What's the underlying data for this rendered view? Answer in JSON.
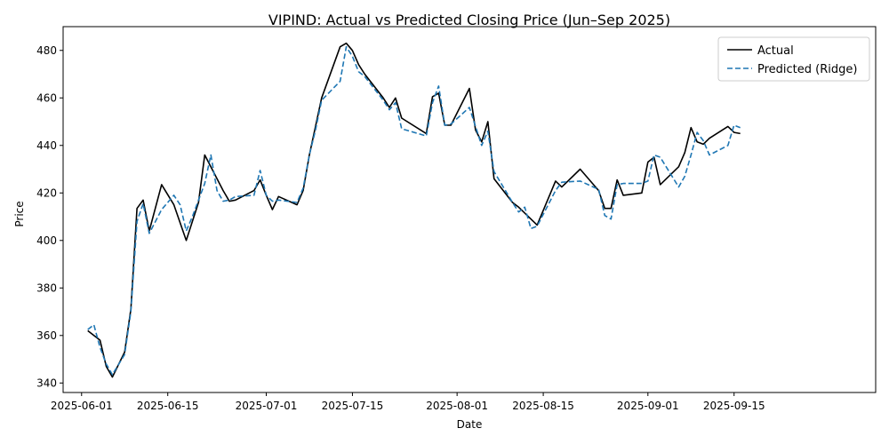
{
  "chart_data": {
    "type": "line",
    "title": "VIPIND: Actual vs Predicted Closing Price (Jun–Sep 2025)",
    "xlabel": "Date",
    "ylabel": "Price",
    "x_domain_days": [
      -3,
      129
    ],
    "ylim": [
      336,
      490
    ],
    "x_ticks": [
      {
        "day": 0,
        "label": "2025-06-01"
      },
      {
        "day": 14,
        "label": "2025-06-15"
      },
      {
        "day": 30,
        "label": "2025-07-01"
      },
      {
        "day": 44,
        "label": "2025-07-15"
      },
      {
        "day": 61,
        "label": "2025-08-01"
      },
      {
        "day": 75,
        "label": "2025-08-15"
      },
      {
        "day": 92,
        "label": "2025-09-01"
      },
      {
        "day": 106,
        "label": "2025-09-15"
      }
    ],
    "y_ticks": [
      340,
      360,
      380,
      400,
      420,
      440,
      460,
      480
    ],
    "legend_position": "upper-right",
    "colors": {
      "actual": "#000000",
      "predicted": "#1f77b4"
    },
    "series": [
      {
        "name": "Actual",
        "style": "solid",
        "x": [
          1,
          3,
          4,
          5,
          7,
          8,
          9,
          10,
          11,
          13,
          15,
          17,
          18,
          19,
          20,
          23,
          24,
          25,
          28,
          29,
          30,
          31,
          32,
          35,
          36,
          37,
          38,
          39,
          42,
          43,
          44,
          45,
          46,
          49,
          50,
          51,
          52,
          56,
          57,
          58,
          59,
          60,
          63,
          64,
          65,
          66,
          67,
          70,
          71,
          74,
          77,
          78,
          81,
          84,
          85,
          86,
          87,
          88,
          91,
          92,
          93,
          94,
          97,
          98,
          99,
          100,
          101,
          102,
          105,
          106,
          107
        ],
        "values": [
          362,
          358,
          347,
          342.5,
          353,
          371,
          413.5,
          417,
          404,
          423.5,
          415,
          400,
          408,
          416,
          436,
          421,
          416.5,
          417,
          421,
          425.5,
          419,
          413,
          418.5,
          415,
          421,
          436,
          448,
          460,
          481.5,
          483,
          480,
          474,
          470,
          460,
          456,
          460,
          451.5,
          445,
          460.5,
          462,
          448.5,
          448.5,
          464,
          446.5,
          441.5,
          450,
          426,
          416,
          414,
          406.5,
          425,
          422.5,
          430,
          421,
          413.5,
          413.5,
          425.5,
          419,
          420,
          433,
          435,
          423.5,
          431,
          437,
          447.5,
          441.5,
          440.5,
          443,
          448,
          445.5,
          445
        ]
      },
      {
        "name": "Predicted (Ridge)",
        "style": "dashed",
        "x": [
          1,
          2,
          3,
          4,
          5,
          7,
          8,
          9,
          10,
          11,
          13,
          15,
          16,
          17,
          18,
          19,
          20,
          21,
          22,
          23,
          24,
          25,
          28,
          29,
          30,
          31,
          32,
          35,
          36,
          37,
          38,
          39,
          42,
          43,
          44,
          45,
          46,
          49,
          50,
          51,
          52,
          56,
          57,
          58,
          59,
          60,
          63,
          64,
          65,
          66,
          67,
          70,
          71,
          72,
          73,
          74,
          77,
          78,
          81,
          84,
          85,
          86,
          87,
          88,
          91,
          92,
          93,
          94,
          97,
          98,
          99,
          100,
          101,
          102,
          105,
          106,
          107
        ],
        "values": [
          362.5,
          364.5,
          355,
          348,
          343.5,
          352,
          370,
          408,
          415.5,
          403,
          413,
          419,
          415,
          404,
          410,
          417,
          424,
          436,
          421,
          416.5,
          417,
          418.5,
          419,
          429.5,
          419,
          416.5,
          417,
          416,
          422,
          436,
          446.5,
          459,
          467,
          481.5,
          477.5,
          471,
          469,
          459,
          455,
          458,
          447,
          444,
          458,
          465,
          448.5,
          449,
          456,
          448,
          440,
          446,
          429,
          416,
          412,
          414,
          405,
          406,
          421,
          424.5,
          425,
          421.5,
          410.5,
          409,
          423.5,
          424,
          424,
          425,
          436,
          435,
          422.5,
          427,
          436,
          445.5,
          442,
          436,
          440,
          448.5,
          447.5
        ]
      }
    ]
  }
}
